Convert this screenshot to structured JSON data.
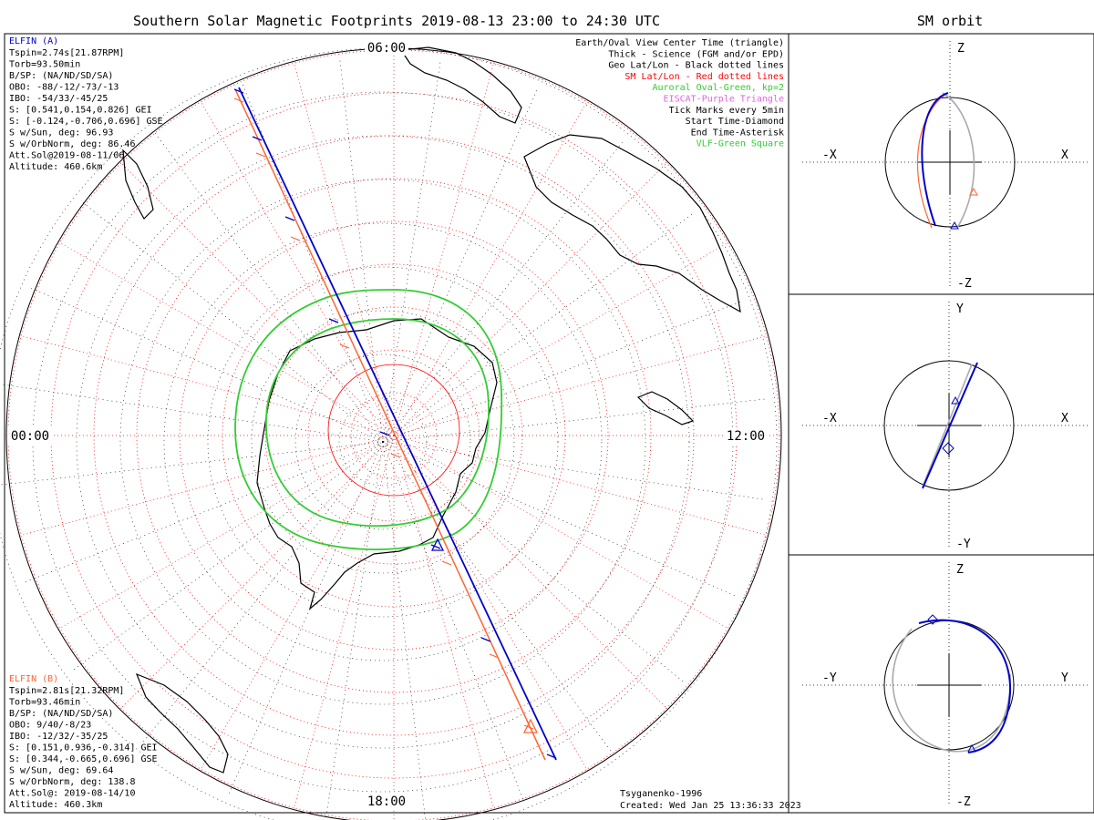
{
  "title": "Southern Solar Magnetic Footprints 2019-08-13 23:00 to 24:30 UTC",
  "orbit_title": "SM orbit",
  "mlt_labels": {
    "top": "06:00",
    "left": "00:00",
    "right": "12:00",
    "bottom": "18:00"
  },
  "elfin_a": {
    "name": "ELFIN (A)",
    "color": "#0000cc",
    "lines": [
      "Tspin=2.74s[21.87RPM]",
      "Torb=93.50min",
      "B/SP: (NA/ND/SD/SA)",
      "OBO: -88/-12/-73/-13",
      "IBO: -54/33/-45/25",
      "S: [0.541,0.154,0.826] GEI",
      "S: [-0.124,-0.706,0.696] GSE",
      "S w/Sun, deg: 96.93",
      "S w/OrbNorm, deg: 86.46",
      "Att.Sol@2019-08-11/06",
      "Altitude: 460.6km"
    ]
  },
  "elfin_b": {
    "name": "ELFIN (B)",
    "color": "#ff6633",
    "lines": [
      "Tspin=2.81s[21.32RPM]",
      "Torb=93.46min",
      "B/SP: (NA/ND/SD/SA)",
      "OBO: 9/40/-8/23",
      "IBO: -12/32/-35/25",
      "S: [0.151,0.936,-0.314] GEI",
      "S: [0.344,-0.665,0.696] GSE",
      "S w/Sun, deg: 69.64",
      "S w/OrbNorm, deg: 138.8",
      "Att.Sol@: 2019-08-14/10",
      "Altitude: 460.3km"
    ]
  },
  "legend": [
    {
      "text": "Earth/Oval View Center Time (triangle)",
      "color": "#000000"
    },
    {
      "text": "Thick - Science (FGM and/or EPD)",
      "color": "#000000"
    },
    {
      "text": "Geo Lat/Lon - Black dotted lines",
      "color": "#000000"
    },
    {
      "text": "SM Lat/Lon - Red dotted lines",
      "color": "#ff0000"
    },
    {
      "text": "Auroral Oval-Green, kp=2",
      "color": "#33cc33"
    },
    {
      "text": "EISCAT-Purple Triangle",
      "color": "#dd66dd"
    },
    {
      "text": "Tick Marks every 5min",
      "color": "#000000"
    },
    {
      "text": "Start Time-Diamond",
      "color": "#000000"
    },
    {
      "text": "End Time-Asterisk",
      "color": "#000000"
    },
    {
      "text": "VLF-Green Square",
      "color": "#33cc33"
    }
  ],
  "footer": {
    "line1": "Tsyganenko-1996",
    "line2": "Created: Wed Jan 25 13:36:33 2023"
  },
  "orbit_panels": [
    {
      "top": "Z",
      "bottom": "-Z",
      "left": "-X",
      "right": "X"
    },
    {
      "top": "Y",
      "bottom": "-Y",
      "left": "-X",
      "right": "X"
    },
    {
      "top": "Z",
      "bottom": "-Z",
      "left": "-Y",
      "right": "Y"
    }
  ],
  "colors": {
    "elfin_a": "#0000cc",
    "elfin_b": "#ff6633",
    "auroral_oval": "#33cc33",
    "sm_grid": "#ff0000",
    "geo_grid": "#000000"
  },
  "chart_data": {
    "type": "polar footprint map",
    "grid_rings_count": 9,
    "grid_radial_spokes_count": 24,
    "auroral_oval_kp": 2,
    "tracks": [
      {
        "name": "ELFIN (A)",
        "tick_interval_min": 5
      },
      {
        "name": "ELFIN (B)",
        "tick_interval_min": 5
      }
    ]
  }
}
